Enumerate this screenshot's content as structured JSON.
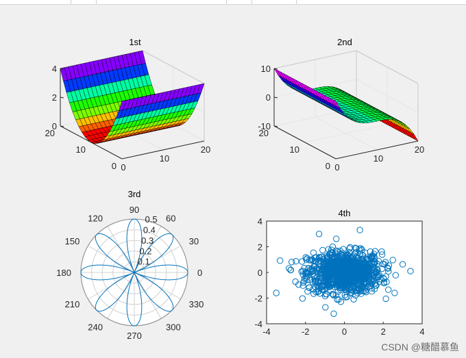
{
  "window": {
    "watermark": "CSDN @糖醋慕鱼"
  },
  "colors": {
    "line": "#0072bd",
    "axis": "#262626",
    "grid": "#d0d0d0",
    "background": "#f0f0f0",
    "axes_face": "#ffffff"
  },
  "chart_data": [
    {
      "type": "surface",
      "title": "1st",
      "colormap": "hsv",
      "z_ticks": [
        "0",
        "2",
        "4"
      ],
      "zlim": [
        0,
        4
      ],
      "y_ticks": [
        "0",
        "10",
        "20"
      ],
      "x_ticks": [
        "0",
        "10",
        "20"
      ],
      "shape": "parabolic trough, min at center, edges at 4"
    },
    {
      "type": "surface",
      "title": "2nd",
      "colormap": "hsv",
      "z_ticks": [
        "-10",
        "0",
        "10"
      ],
      "zlim": [
        -10,
        10
      ],
      "y_ticks": [
        "0",
        "10",
        "20"
      ],
      "x_ticks": [
        "0",
        "10",
        "20"
      ],
      "shape": "cubic-like sheet, high at back (10), low at front (-10)"
    },
    {
      "type": "polar",
      "title": "3rd",
      "r_ticks": [
        "0.1",
        "0.2",
        "0.3",
        "0.4",
        "0.5"
      ],
      "rmax": 0.5,
      "theta_labels": [
        "0",
        "30",
        "60",
        "90",
        "120",
        "150",
        "180",
        "210",
        "240",
        "270",
        "300",
        "330"
      ],
      "curve": "rose r = 0.5·|cos 4θ|, 8 petals along 0°,45°,90°,..."
    },
    {
      "type": "scatter",
      "title": "4th",
      "x_ticks": [
        "-4",
        "-2",
        "0",
        "2",
        "4"
      ],
      "y_ticks": [
        "-4",
        "-2",
        "0",
        "2",
        "4"
      ],
      "xlim": [
        -4,
        4
      ],
      "ylim": [
        -4,
        4
      ],
      "points": "about 1000 standard-normal samples, marker open circle",
      "outliers": [
        [
          -3.5,
          -1.6
        ],
        [
          3.4,
          0.1
        ],
        [
          -1.3,
          3.0
        ],
        [
          0.8,
          3.3
        ]
      ]
    }
  ]
}
